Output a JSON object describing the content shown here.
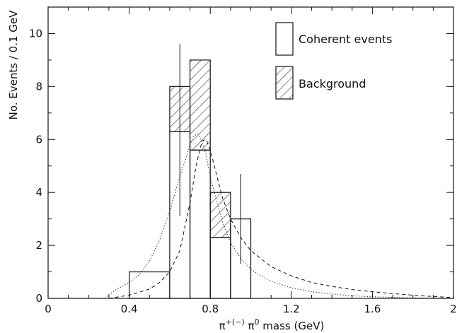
{
  "chart_data": {
    "type": "bar",
    "title": "",
    "xlabel": "π+(−) π0 mass (GeV)",
    "xlabel_parts": {
      "pi1": "π",
      "sup1": "+(−)",
      "pi2": " π",
      "sup2": "0",
      "rest": " mass  (GeV)"
    },
    "ylabel": "No. Events / 0.1 GeV",
    "xlim": [
      0,
      2
    ],
    "ylim": [
      0,
      11
    ],
    "x_ticks": [
      0,
      0.4,
      0.8,
      1.2,
      1.6,
      2
    ],
    "x_tick_labels": [
      "0",
      "0.4",
      "0.8",
      "1.2",
      "1.6",
      "2"
    ],
    "y_ticks": [
      0,
      2,
      4,
      6,
      8,
      10
    ],
    "y_tick_labels": [
      "0",
      "2",
      "4",
      "6",
      "8",
      "10"
    ],
    "grid": false,
    "legend_position": "top-right",
    "legend": [
      {
        "label": "Coherent events",
        "style": "open"
      },
      {
        "label": "Background",
        "style": "hatched"
      }
    ],
    "bins": [
      {
        "x0": 0.4,
        "x1": 0.6,
        "coherent": 1.0,
        "background": 0.0
      },
      {
        "x0": 0.6,
        "x1": 0.7,
        "coherent": 6.3,
        "background": 1.7
      },
      {
        "x0": 0.7,
        "x1": 0.8,
        "coherent": 5.6,
        "background": 3.4
      },
      {
        "x0": 0.8,
        "x1": 0.9,
        "coherent": 2.3,
        "background": 1.7
      },
      {
        "x0": 0.9,
        "x1": 1.0,
        "coherent": 3.0,
        "background": 0.0
      }
    ],
    "error_bars": [
      {
        "x": 0.65,
        "low": 3.1,
        "high": 9.6
      },
      {
        "x": 0.95,
        "low": 1.3,
        "high": 4.7
      }
    ],
    "curves": [
      {
        "style": "dotted",
        "x": [
          0.28,
          0.3,
          0.34,
          0.4,
          0.45,
          0.5,
          0.55,
          0.6,
          0.65,
          0.68,
          0.7,
          0.72,
          0.74,
          0.76,
          0.78,
          0.8,
          0.83,
          0.86,
          0.9,
          0.95,
          1.0,
          1.05,
          1.1,
          1.2,
          1.3,
          1.4,
          1.5,
          1.6,
          1.7,
          1.8,
          1.9,
          2.0
        ],
        "y": [
          0.0,
          0.15,
          0.35,
          0.6,
          0.9,
          1.4,
          2.2,
          3.3,
          4.6,
          5.3,
          5.8,
          6.15,
          6.2,
          5.9,
          5.4,
          4.6,
          3.7,
          2.9,
          2.1,
          1.5,
          1.1,
          0.85,
          0.65,
          0.4,
          0.25,
          0.16,
          0.1,
          0.06,
          0.04,
          0.02,
          0.01,
          0.0
        ]
      },
      {
        "style": "dashed",
        "x": [
          0.3,
          0.4,
          0.5,
          0.55,
          0.6,
          0.65,
          0.7,
          0.73,
          0.76,
          0.78,
          0.8,
          0.83,
          0.86,
          0.9,
          0.95,
          1.0,
          1.1,
          1.2,
          1.3,
          1.4,
          1.5,
          1.6,
          1.7,
          1.8,
          1.9,
          2.0
        ],
        "y": [
          0.0,
          0.12,
          0.35,
          0.6,
          1.0,
          1.8,
          3.6,
          5.0,
          5.95,
          6.0,
          5.6,
          4.7,
          3.8,
          3.0,
          2.3,
          1.8,
          1.2,
          0.85,
          0.6,
          0.45,
          0.33,
          0.25,
          0.18,
          0.12,
          0.07,
          0.03
        ]
      }
    ]
  }
}
